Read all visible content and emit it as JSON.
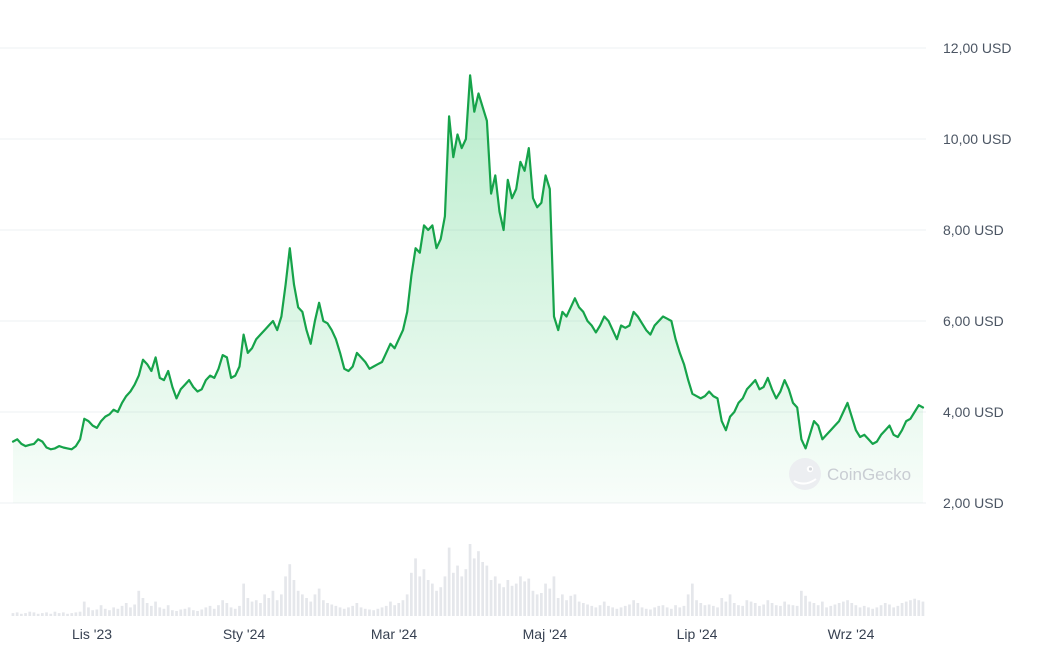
{
  "chart_data": {
    "type": "area",
    "title": "",
    "xlabel": "",
    "ylabel": "",
    "currency_suffix": "USD",
    "x_tick_labels": [
      "Lis '23",
      "Sty '24",
      "Mar '24",
      "Maj '24",
      "Lip '24",
      "Wrz '24"
    ],
    "y_tick_labels": [
      "2,00 USD",
      "4,00 USD",
      "6,00 USD",
      "8,00 USD",
      "10,00 USD",
      "12,00 USD"
    ],
    "ylim": [
      2,
      12
    ],
    "grid": true,
    "watermark": "CoinGecko",
    "colors": {
      "line": "#16a34a",
      "fill": "#22c55e",
      "volume": "#e5e7eb",
      "grid": "#eef0f3"
    },
    "date_range": [
      "2023-10-01",
      "2024-09-30"
    ],
    "series": [
      {
        "values": [
          3.35,
          3.4,
          3.3,
          3.25,
          3.28,
          3.3,
          3.4,
          3.35,
          3.22,
          3.18,
          3.2,
          3.25,
          3.22,
          3.2,
          3.18,
          3.25,
          3.4,
          3.85,
          3.8,
          3.7,
          3.65,
          3.8,
          3.9,
          3.95,
          4.05,
          4.0,
          4.2,
          4.35,
          4.45,
          4.6,
          4.8,
          5.15,
          5.05,
          4.9,
          5.2,
          4.75,
          4.7,
          4.9,
          4.55,
          4.3,
          4.5,
          4.6,
          4.7,
          4.55,
          4.45,
          4.5,
          4.7,
          4.8,
          4.75,
          4.95,
          5.25,
          5.2,
          4.75,
          4.8,
          5.0,
          5.7,
          5.3,
          5.4,
          5.6,
          5.7,
          5.8,
          5.9,
          6.0,
          5.8,
          6.1,
          6.8,
          7.6,
          6.8,
          6.3,
          6.2,
          5.8,
          5.5,
          6.0,
          6.4,
          6.0,
          5.95,
          5.8,
          5.6,
          5.3,
          4.95,
          4.9,
          5.0,
          5.3,
          5.2,
          5.1,
          4.95,
          5.0,
          5.05,
          5.1,
          5.3,
          5.5,
          5.4,
          5.6,
          5.8,
          6.2,
          7.0,
          7.6,
          7.5,
          8.1,
          8.0,
          8.1,
          7.6,
          7.8,
          8.3,
          10.5,
          9.6,
          10.1,
          9.8,
          10.0,
          11.4,
          10.6,
          11.0,
          10.7,
          10.4,
          8.8,
          9.2,
          8.4,
          8.0,
          9.1,
          8.7,
          8.9,
          9.5,
          9.3,
          9.8,
          8.7,
          8.5,
          8.6,
          9.2,
          8.9,
          6.1,
          5.8,
          6.2,
          6.1,
          6.3,
          6.5,
          6.3,
          6.2,
          6.0,
          5.9,
          5.75,
          5.9,
          6.1,
          6.0,
          5.8,
          5.6,
          5.9,
          5.85,
          5.9,
          6.2,
          6.1,
          5.95,
          5.8,
          5.7,
          5.9,
          6.0,
          6.1,
          6.05,
          6.0,
          5.6,
          5.3,
          5.05,
          4.7,
          4.4,
          4.35,
          4.3,
          4.35,
          4.45,
          4.35,
          4.3,
          3.8,
          3.6,
          3.9,
          4.0,
          4.2,
          4.3,
          4.5,
          4.6,
          4.7,
          4.5,
          4.55,
          4.75,
          4.5,
          4.3,
          4.45,
          4.7,
          4.5,
          4.2,
          4.1,
          3.4,
          3.2,
          3.5,
          3.8,
          3.7,
          3.4,
          3.5,
          3.6,
          3.7,
          3.8,
          4.0,
          4.2,
          3.9,
          3.6,
          3.45,
          3.5,
          3.4,
          3.3,
          3.35,
          3.5,
          3.6,
          3.7,
          3.5,
          3.45,
          3.6,
          3.8,
          3.85,
          4.0,
          4.15,
          4.1
        ]
      }
    ],
    "volume": {
      "max_level": 1.0,
      "values": [
        0.04,
        0.05,
        0.03,
        0.04,
        0.06,
        0.05,
        0.03,
        0.04,
        0.05,
        0.03,
        0.06,
        0.04,
        0.05,
        0.03,
        0.04,
        0.05,
        0.06,
        0.2,
        0.12,
        0.08,
        0.09,
        0.15,
        0.1,
        0.08,
        0.12,
        0.1,
        0.14,
        0.18,
        0.12,
        0.16,
        0.35,
        0.25,
        0.18,
        0.14,
        0.2,
        0.12,
        0.1,
        0.15,
        0.08,
        0.07,
        0.09,
        0.1,
        0.12,
        0.08,
        0.07,
        0.09,
        0.12,
        0.14,
        0.1,
        0.15,
        0.22,
        0.18,
        0.12,
        0.1,
        0.14,
        0.45,
        0.25,
        0.2,
        0.22,
        0.18,
        0.3,
        0.25,
        0.35,
        0.22,
        0.3,
        0.55,
        0.72,
        0.5,
        0.35,
        0.3,
        0.25,
        0.2,
        0.3,
        0.38,
        0.22,
        0.18,
        0.16,
        0.14,
        0.12,
        0.1,
        0.12,
        0.14,
        0.18,
        0.12,
        0.1,
        0.09,
        0.08,
        0.1,
        0.12,
        0.14,
        0.2,
        0.15,
        0.18,
        0.22,
        0.3,
        0.6,
        0.8,
        0.55,
        0.65,
        0.5,
        0.45,
        0.35,
        0.4,
        0.55,
        0.95,
        0.6,
        0.7,
        0.55,
        0.65,
        1.0,
        0.8,
        0.9,
        0.75,
        0.7,
        0.5,
        0.55,
        0.45,
        0.4,
        0.5,
        0.42,
        0.45,
        0.55,
        0.48,
        0.52,
        0.35,
        0.3,
        0.32,
        0.45,
        0.38,
        0.55,
        0.25,
        0.3,
        0.22,
        0.28,
        0.3,
        0.2,
        0.18,
        0.16,
        0.14,
        0.12,
        0.15,
        0.2,
        0.14,
        0.12,
        0.1,
        0.12,
        0.14,
        0.16,
        0.22,
        0.18,
        0.12,
        0.1,
        0.09,
        0.12,
        0.14,
        0.15,
        0.12,
        0.1,
        0.15,
        0.12,
        0.14,
        0.3,
        0.45,
        0.22,
        0.18,
        0.15,
        0.16,
        0.14,
        0.12,
        0.25,
        0.2,
        0.3,
        0.18,
        0.15,
        0.14,
        0.22,
        0.2,
        0.18,
        0.14,
        0.16,
        0.22,
        0.18,
        0.15,
        0.14,
        0.2,
        0.16,
        0.15,
        0.14,
        0.35,
        0.28,
        0.2,
        0.18,
        0.15,
        0.2,
        0.12,
        0.14,
        0.16,
        0.18,
        0.2,
        0.22,
        0.18,
        0.15,
        0.12,
        0.14,
        0.12,
        0.1,
        0.12,
        0.15,
        0.18,
        0.16,
        0.12,
        0.14,
        0.18,
        0.2,
        0.22,
        0.24,
        0.22,
        0.2
      ]
    }
  }
}
